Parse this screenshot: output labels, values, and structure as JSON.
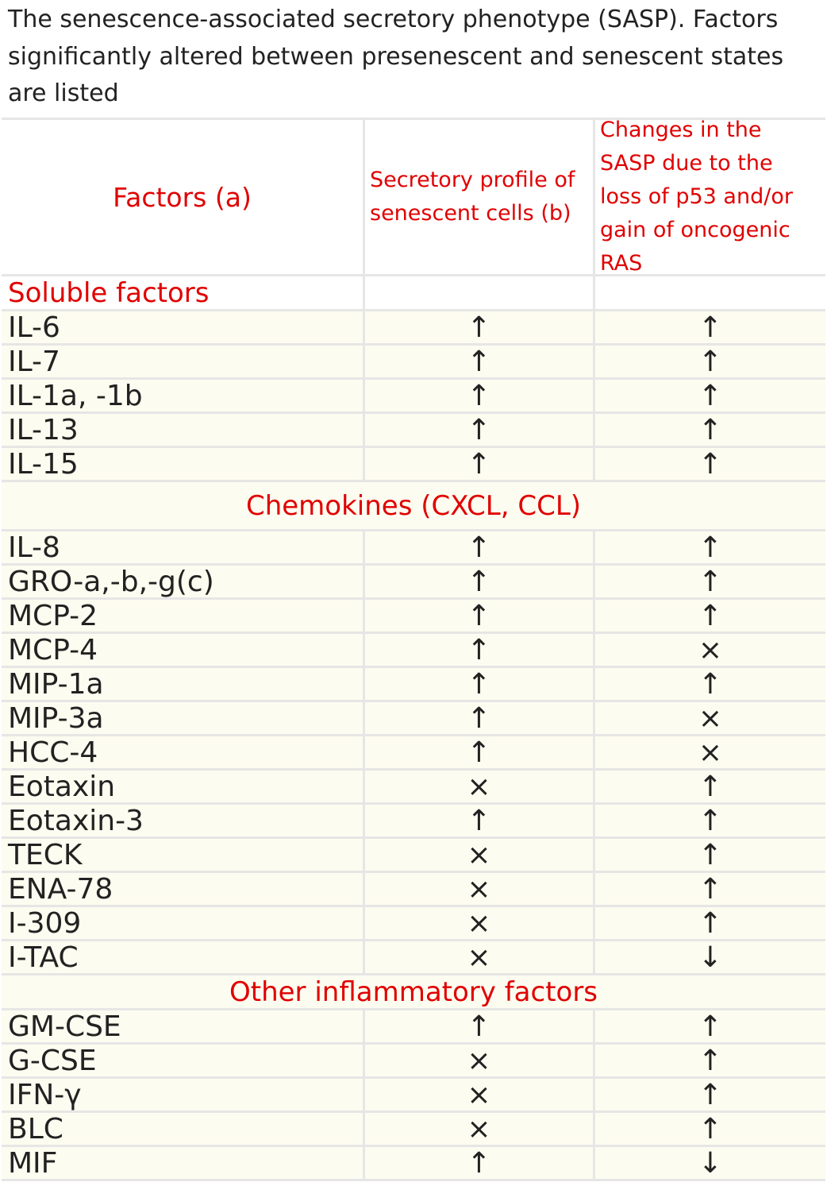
{
  "caption": "The senescence-associated secretory phenotype (SASP). Factors significantly altered between presenescent and senescent states are listed",
  "table": {
    "header": [
      "Factors (a)",
      "Secretory profile of senescent cells (b)",
      "Changes in the SASP due to the loss of p53 and/or gain of oncogenic RAS"
    ],
    "sections": [
      {
        "title": "Soluble factors",
        "rows": [
          [
            "IL-6",
            "↑",
            "↑"
          ],
          [
            "IL-7",
            "↑",
            "↑"
          ],
          [
            "IL-1a, -1b",
            "↑",
            "↑"
          ],
          [
            "IL-13",
            "↑",
            "↑"
          ],
          [
            "IL-15",
            "↑",
            "↑"
          ]
        ]
      },
      {
        "title": "Chemokines (CXCL, CCL)",
        "rows": [
          [
            "IL-8",
            "↑",
            "↑"
          ],
          [
            "GRO-a,-b,-g(c)",
            "↑",
            "↑"
          ],
          [
            "MCP-2",
            "↑",
            "↑"
          ],
          [
            "MCP-4",
            "↑",
            "×"
          ],
          [
            "MIP-1a",
            "↑",
            "↑"
          ],
          [
            "MIP-3a",
            "↑",
            "×"
          ],
          [
            "HCC-4",
            "↑",
            "×"
          ],
          [
            "Eotaxin",
            "×",
            "↑"
          ],
          [
            "Eotaxin-3",
            "↑",
            "↑"
          ],
          [
            "TECK",
            "×",
            "↑"
          ],
          [
            "ENA-78",
            "×",
            "↑"
          ],
          [
            "I-309",
            "×",
            "↑"
          ],
          [
            "I-TAC",
            "×",
            "↓"
          ]
        ]
      },
      {
        "title": "Other inflammatory factors",
        "rows": [
          [
            "GM-CSE",
            "↑",
            "↑"
          ],
          [
            "G-CSE",
            "×",
            "↑"
          ],
          [
            "IFN-γ",
            "×",
            "↑"
          ],
          [
            "BLC",
            "×",
            "↑"
          ],
          [
            "MIF",
            "↑",
            "↓"
          ]
        ]
      }
    ]
  }
}
